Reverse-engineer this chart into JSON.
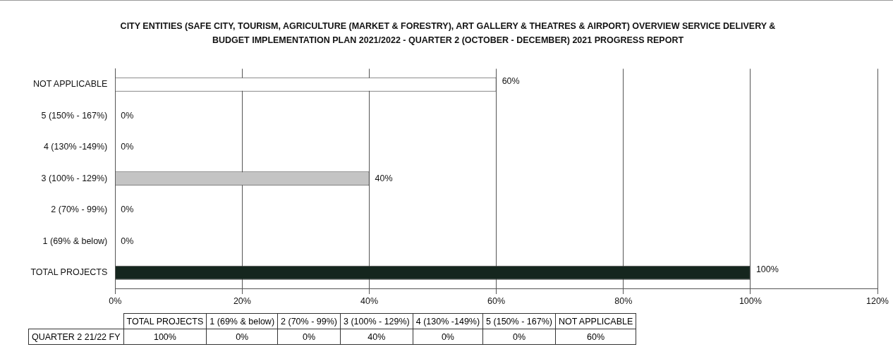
{
  "chart_data": {
    "type": "bar",
    "orientation": "horizontal",
    "title": "CITY ENTITIES (SAFE CITY, TOURISM, AGRICULTURE (MARKET & FORESTRY), ART GALLERY & THEATRES & AIRPORT) OVERVIEW SERVICE DELIVERY & BUDGET IMPLEMENTATION PLAN 2021/2022 - QUARTER 2 (OCTOBER - DECEMBER) 2021 PROGRESS REPORT",
    "categories": [
      "NOT APPLICABLE",
      "5 (150% - 167%)",
      "4 (130% -149%)",
      "3 (100% - 129%)",
      "2 (70% - 99%)",
      "1 (69% & below)",
      "TOTAL PROJECTS"
    ],
    "series": [
      {
        "name": "QUARTER 2 21/22 FY",
        "values": [
          60,
          0,
          0,
          40,
          0,
          0,
          100
        ],
        "colors": [
          "#ffffff",
          "#ffffff",
          "#ffffff",
          "#c4c4c4",
          "#ffffff",
          "#ffffff",
          "#15261e"
        ],
        "value_labels": [
          "60%",
          "0%",
          "0%",
          "40%",
          "0%",
          "0%",
          "100%"
        ]
      }
    ],
    "xlim": [
      0,
      120
    ],
    "xticks": [
      {
        "value": 0,
        "label": "0%"
      },
      {
        "value": 20,
        "label": "20%"
      },
      {
        "value": 40,
        "label": "40%"
      },
      {
        "value": 60,
        "label": "60%"
      },
      {
        "value": 80,
        "label": "80%"
      },
      {
        "value": 100,
        "label": "100%"
      },
      {
        "value": 120,
        "label": "120%"
      }
    ],
    "grid": "x",
    "legend": false
  }
}
